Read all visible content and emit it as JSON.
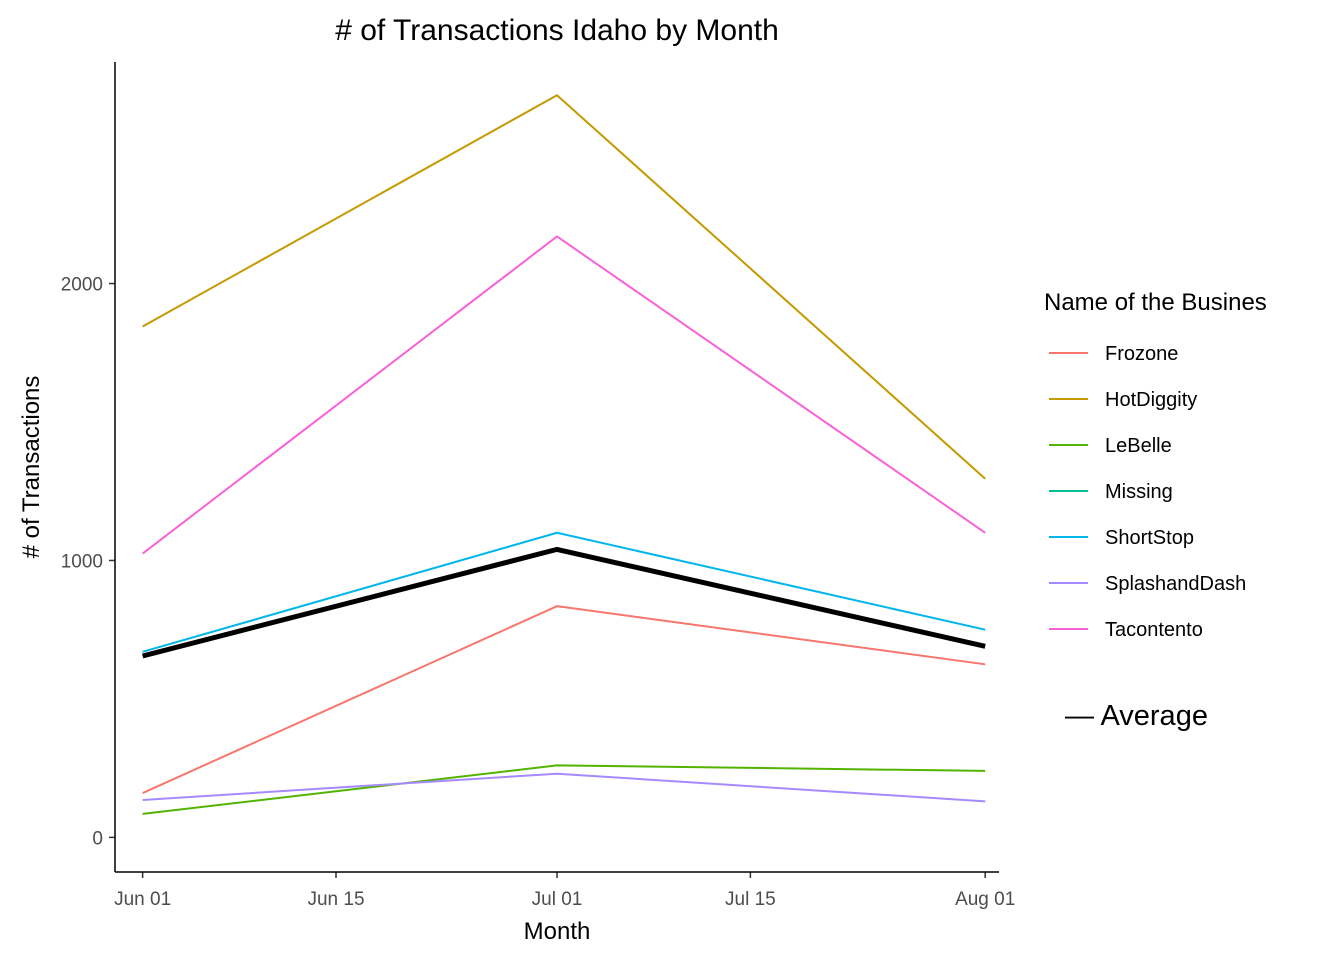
{
  "chart_data": {
    "type": "line",
    "title": "# of Transactions Idaho by Month",
    "xlabel": "Month",
    "ylabel": "# of Transactions",
    "x": [
      "2019-06-01",
      "2019-07-01",
      "2019-08-01"
    ],
    "x_ticks": [
      "Jun 01",
      "Jun 15",
      "Jul 01",
      "Jul 15",
      "Aug 01"
    ],
    "y_ticks": [
      0,
      1000,
      2000
    ],
    "ylim": [
      -125,
      2800
    ],
    "grid": false,
    "legend_title": "Name of the Busines",
    "legend_position": "right",
    "series": [
      {
        "name": "Frozone",
        "color": "#F8766D",
        "values": [
          160,
          835,
          625
        ]
      },
      {
        "name": "HotDiggity",
        "color": "#C49A00",
        "values": [
          1845,
          2680,
          1295
        ]
      },
      {
        "name": "LeBelle",
        "color": "#53B400",
        "values": [
          85,
          260,
          240
        ]
      },
      {
        "name": "Missing",
        "color": "#00C094",
        "values": [
          null,
          null,
          null
        ]
      },
      {
        "name": "ShortStop",
        "color": "#00B6EB",
        "values": [
          670,
          1100,
          750
        ]
      },
      {
        "name": "SplashandDash",
        "color": "#A58AFF",
        "values": [
          135,
          230,
          130
        ]
      },
      {
        "name": "Tacontento",
        "color": "#FB61D7",
        "values": [
          1025,
          2170,
          1100
        ]
      }
    ],
    "average": {
      "name": "— Average",
      "color": "#000000",
      "values": [
        655,
        1040,
        690
      ]
    }
  }
}
